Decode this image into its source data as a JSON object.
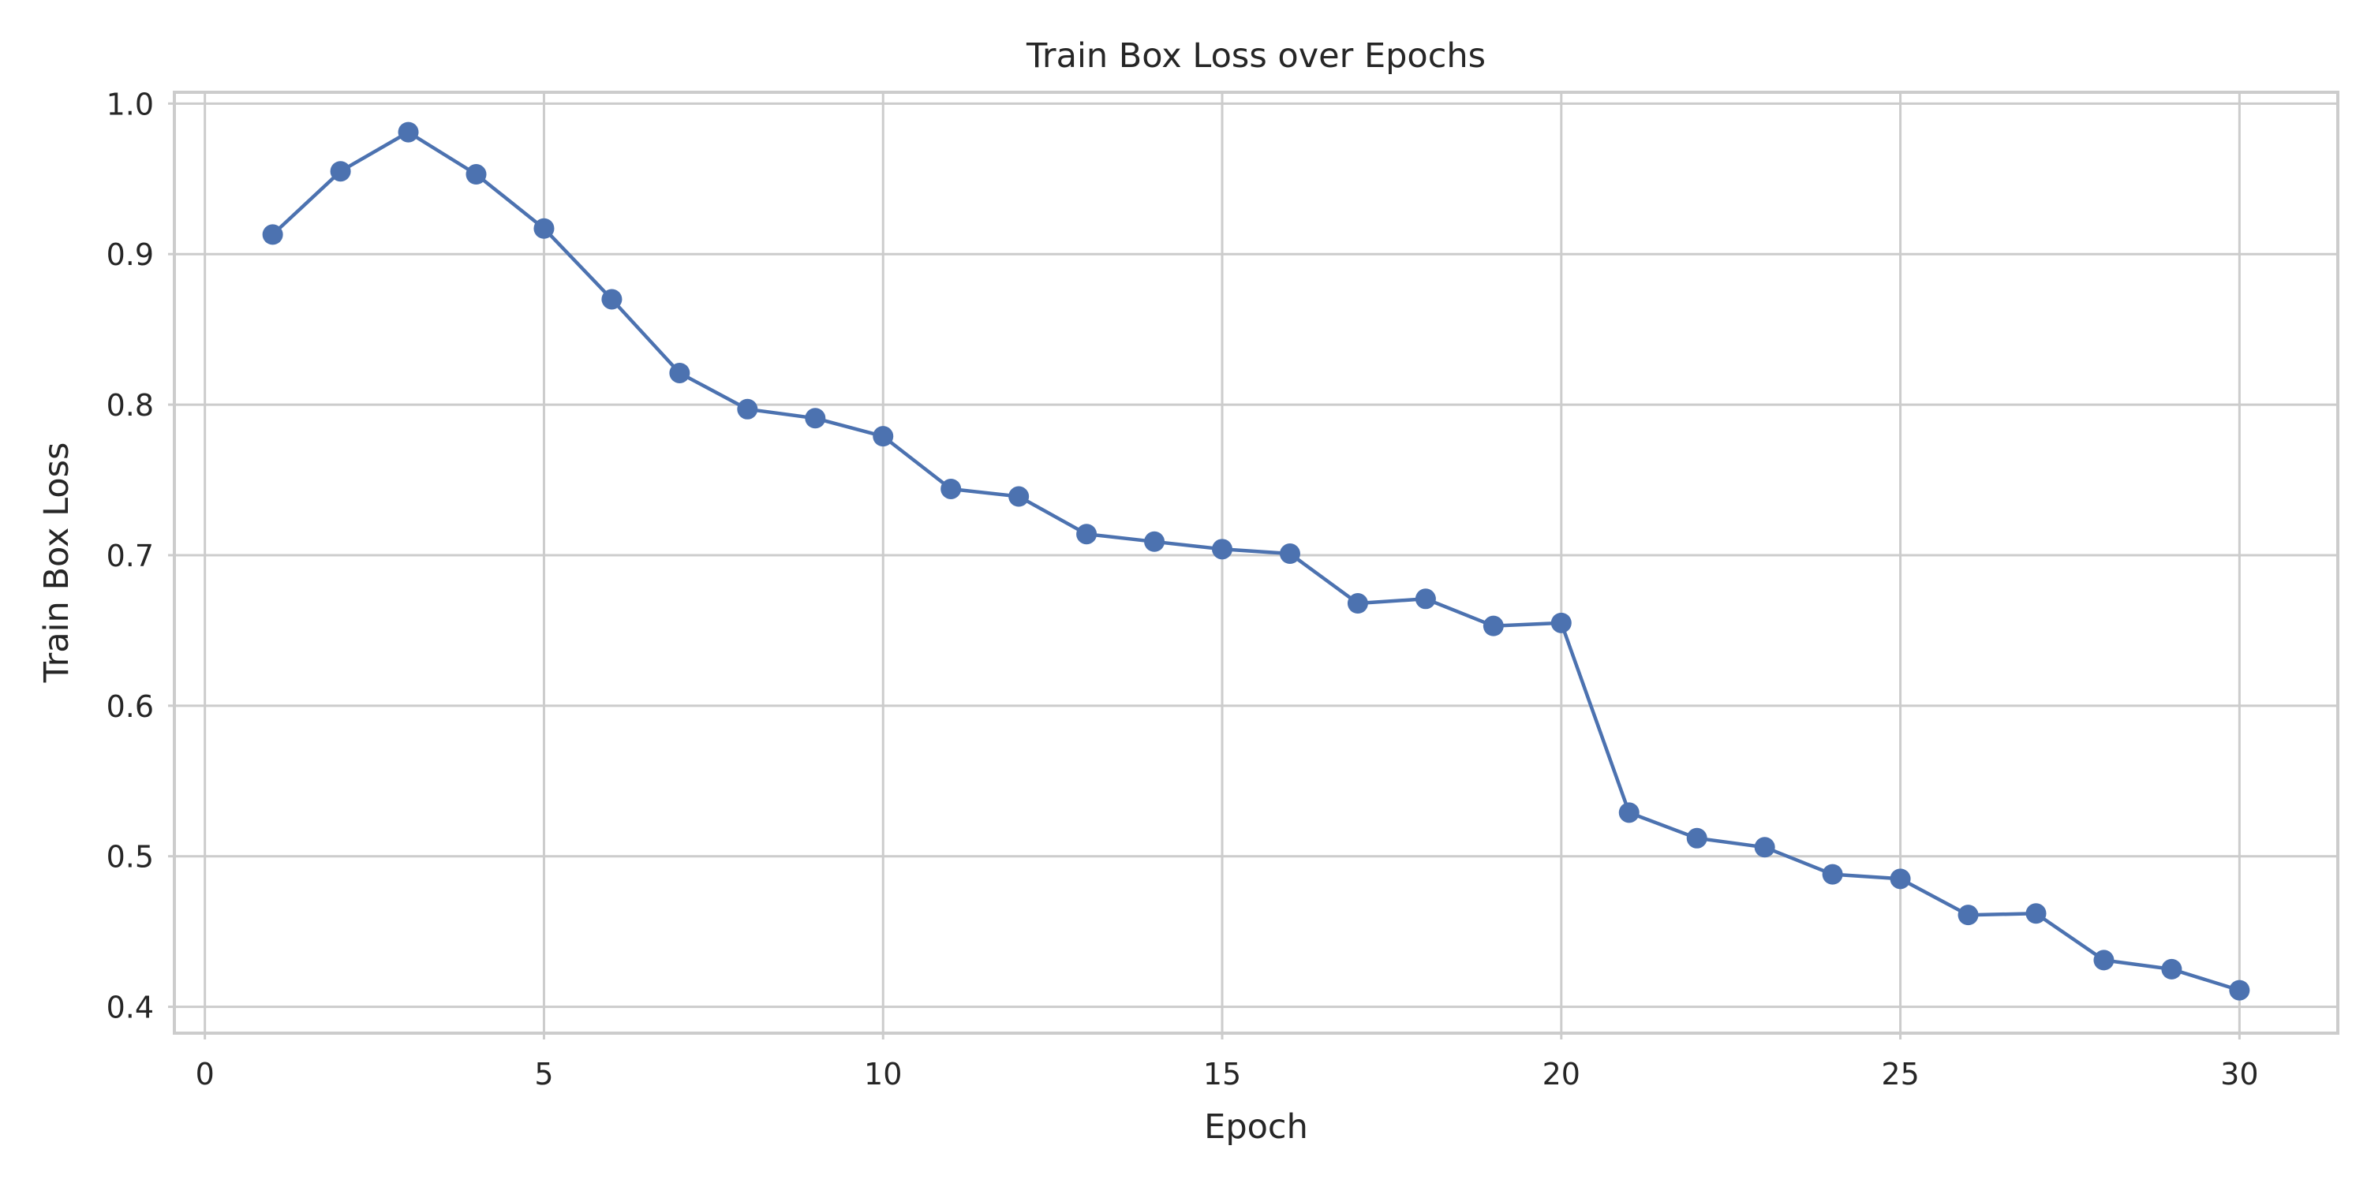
{
  "chart_data": {
    "type": "line",
    "title": "Train Box Loss over Epochs",
    "xlabel": "Epoch",
    "ylabel": "Train Box Loss",
    "xlim": [
      -0.45,
      31.45
    ],
    "ylim": [
      0.3825,
      1.0075
    ],
    "xticks": [
      0,
      5,
      10,
      15,
      20,
      25,
      30
    ],
    "yticks": [
      0.4,
      0.5,
      0.6,
      0.7,
      0.8,
      0.9,
      1.0
    ],
    "xtick_labels": [
      "0",
      "5",
      "10",
      "15",
      "20",
      "25",
      "30"
    ],
    "ytick_labels": [
      "0.4",
      "0.5",
      "0.6",
      "0.7",
      "0.8",
      "0.9",
      "1.0"
    ],
    "grid": true,
    "legend": "none",
    "color": "#4c72b0",
    "series": [
      {
        "x": [
          1,
          2,
          3,
          4,
          5,
          6,
          7,
          8,
          9,
          10,
          11,
          12,
          13,
          14,
          15,
          16,
          17,
          18,
          19,
          20,
          21,
          22,
          23,
          24,
          25,
          26,
          27,
          28,
          29,
          30
        ],
        "values": [
          0.913,
          0.955,
          0.981,
          0.953,
          0.917,
          0.87,
          0.821,
          0.797,
          0.791,
          0.779,
          0.744,
          0.739,
          0.714,
          0.709,
          0.704,
          0.701,
          0.668,
          0.671,
          0.653,
          0.655,
          0.529,
          0.512,
          0.506,
          0.488,
          0.485,
          0.461,
          0.462,
          0.431,
          0.425,
          0.411
        ]
      }
    ]
  }
}
